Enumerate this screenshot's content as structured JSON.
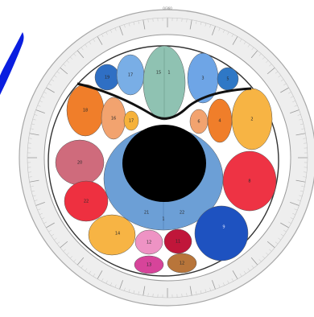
{
  "ring": {
    "top_label": "0/360"
  },
  "bubbles": {
    "left_upper_blue": {
      "label": "19",
      "color": "#2f6fc4"
    },
    "left_upper_lightblue": {
      "label": "17",
      "color": "#79aee6"
    },
    "top_center": {
      "labels": [
        "15",
        "1"
      ],
      "color": "#8fc2b2"
    },
    "right_upper_lightblue": {
      "label": "3",
      "color": "#6ea5e6"
    },
    "right_upper_blue": {
      "label": "5",
      "color": "#2f78c6"
    },
    "left_orange": {
      "label": "18",
      "color": "#f07e2a"
    },
    "left_peach": {
      "label": "16",
      "color": "#f2a36f"
    },
    "left_yellow_small": {
      "label": "17",
      "color": "#f6b23a"
    },
    "right_peach_small": {
      "label": "6",
      "color": "#f2a36f"
    },
    "right_orange": {
      "label": "4",
      "color": "#f07e2a"
    },
    "right_yellow": {
      "label": "2",
      "color": "#f7b444"
    },
    "left_mauve": {
      "label": "20",
      "color": "#cf6b7c"
    },
    "left_red": {
      "label": "22",
      "color": "#ee3040"
    },
    "right_red": {
      "label": "8",
      "color": "#ee3344"
    },
    "center_large": {
      "labels": [
        "21",
        "1",
        "22"
      ],
      "color": "#6c9fd6"
    },
    "bottom_yellow": {
      "label": "14",
      "color": "#f7b444"
    },
    "bottom_pink": {
      "label": "12",
      "color": "#ee93c4"
    },
    "bottom_crimson": {
      "label": "11",
      "color": "#c0163a"
    },
    "bottom_magenta": {
      "label": "13",
      "color": "#d7449a"
    },
    "bottom_brown": {
      "label": "12",
      "color": "#b8753a"
    },
    "right_big_blue": {
      "label": "9",
      "color": "#1e52c0"
    }
  },
  "colors": {
    "core": "#000000",
    "ring_fill": "#e9e9e9",
    "left_blue_shape": "#0a1ee0"
  }
}
